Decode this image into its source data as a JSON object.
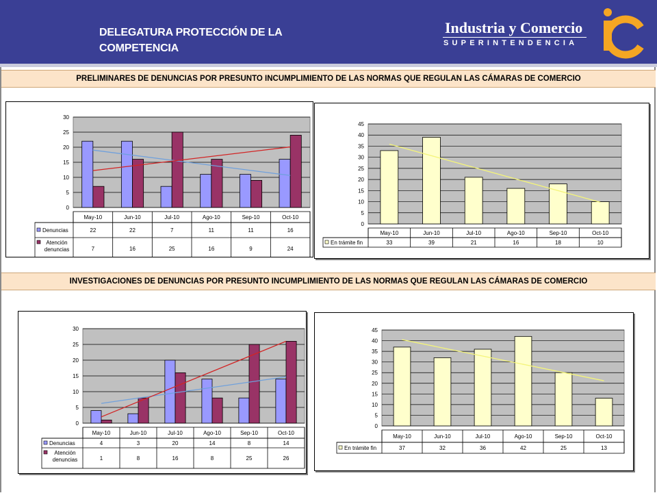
{
  "header": {
    "title_line1": "DELEGATURA PROTECCIÓN DE LA",
    "title_line2": "COMPETENCIA",
    "brand_name": "Industria y Comercio",
    "brand_sub": "SUPERINTENDENCIA"
  },
  "sections": [
    {
      "title": "PRELIMINARES DE DENUNCIAS POR PRESUNTO INCUMPLIMIENTO DE LAS NORMAS QUE REGULAN LAS CÁMARAS DE COMERCIO"
    },
    {
      "title": "INVESTIGACIONES DE DENUNCIAS POR PRESUNTO INCUMPLIMIENTO DE LAS NORMAS QUE REGULAN LAS CÁMARAS DE COMERCIO"
    }
  ],
  "colors": {
    "header_bg": "#3a3f95",
    "section_bar": "#fce4c9",
    "denuncias": "#9999ff",
    "atencion": "#993366",
    "en_tramite": "#ffffcc",
    "trend_blue": "#6fa0dc",
    "trend_red": "#d22424",
    "trend_yellow": "#f4f47a",
    "plot_bg": "#c0c0c0"
  },
  "chart_data": [
    {
      "type": "bar",
      "categories": [
        "May-10",
        "Jun-10",
        "Jul-10",
        "Ago-10",
        "Sep-10",
        "Oct-10"
      ],
      "ylim": [
        0,
        30
      ],
      "yticks": [
        "0",
        "5",
        "10",
        "15",
        "20",
        "25",
        "30"
      ],
      "series": [
        {
          "name": "Denuncias",
          "values": [
            22,
            22,
            7,
            11,
            11,
            16
          ],
          "labels": [
            "22",
            "22",
            "7",
            "11",
            "11",
            "16"
          ]
        },
        {
          "name_line1": "Atención",
          "name_line2": "denuncias",
          "values": [
            7,
            16,
            25,
            16,
            9,
            24
          ],
          "labels": [
            "7",
            "16",
            "25",
            "16",
            "9",
            "24"
          ]
        }
      ],
      "trendlines": true,
      "legend": "data-table"
    },
    {
      "type": "bar",
      "categories": [
        "May-10",
        "Jun-10",
        "Jul-10",
        "Ago-10",
        "Sep-10",
        "Oct-10"
      ],
      "ylim": [
        0,
        45
      ],
      "yticks": [
        "0",
        "5",
        "10",
        "15",
        "20",
        "25",
        "30",
        "35",
        "40",
        "45"
      ],
      "series": [
        {
          "name": "En trámite fin",
          "values": [
            33,
            39,
            21,
            16,
            18,
            10
          ],
          "labels": [
            "33",
            "39",
            "21",
            "16",
            "18",
            "10"
          ]
        }
      ],
      "trendlines": true,
      "legend": "data-table"
    },
    {
      "type": "bar",
      "categories": [
        "May-10",
        "Jun-10",
        "Jul-10",
        "Ago-10",
        "Sep-10",
        "Oct-10"
      ],
      "ylim": [
        0,
        30
      ],
      "yticks": [
        "0",
        "5",
        "10",
        "15",
        "20",
        "25",
        "30"
      ],
      "series": [
        {
          "name": "Denuncias",
          "values": [
            4,
            3,
            20,
            14,
            8,
            14
          ],
          "labels": [
            "4",
            "3",
            "20",
            "14",
            "8",
            "14"
          ]
        },
        {
          "name_line1": "Atención",
          "name_line2": "denuncias",
          "values": [
            1,
            8,
            16,
            8,
            25,
            26
          ],
          "labels": [
            "1",
            "8",
            "16",
            "8",
            "25",
            "26"
          ]
        }
      ],
      "trendlines": true,
      "legend": "data-table"
    },
    {
      "type": "bar",
      "categories": [
        "May-10",
        "Jun-10",
        "Jul-10",
        "Ago-10",
        "Sep-10",
        "Oct-10"
      ],
      "ylim": [
        0,
        45
      ],
      "yticks": [
        "0",
        "5",
        "10",
        "15",
        "20",
        "25",
        "30",
        "35",
        "40",
        "45"
      ],
      "series": [
        {
          "name": "En trámite fin",
          "values": [
            37,
            32,
            36,
            42,
            25,
            13
          ],
          "labels": [
            "37",
            "32",
            "36",
            "42",
            "25",
            "13"
          ]
        }
      ],
      "trendlines": true,
      "legend": "data-table"
    }
  ]
}
